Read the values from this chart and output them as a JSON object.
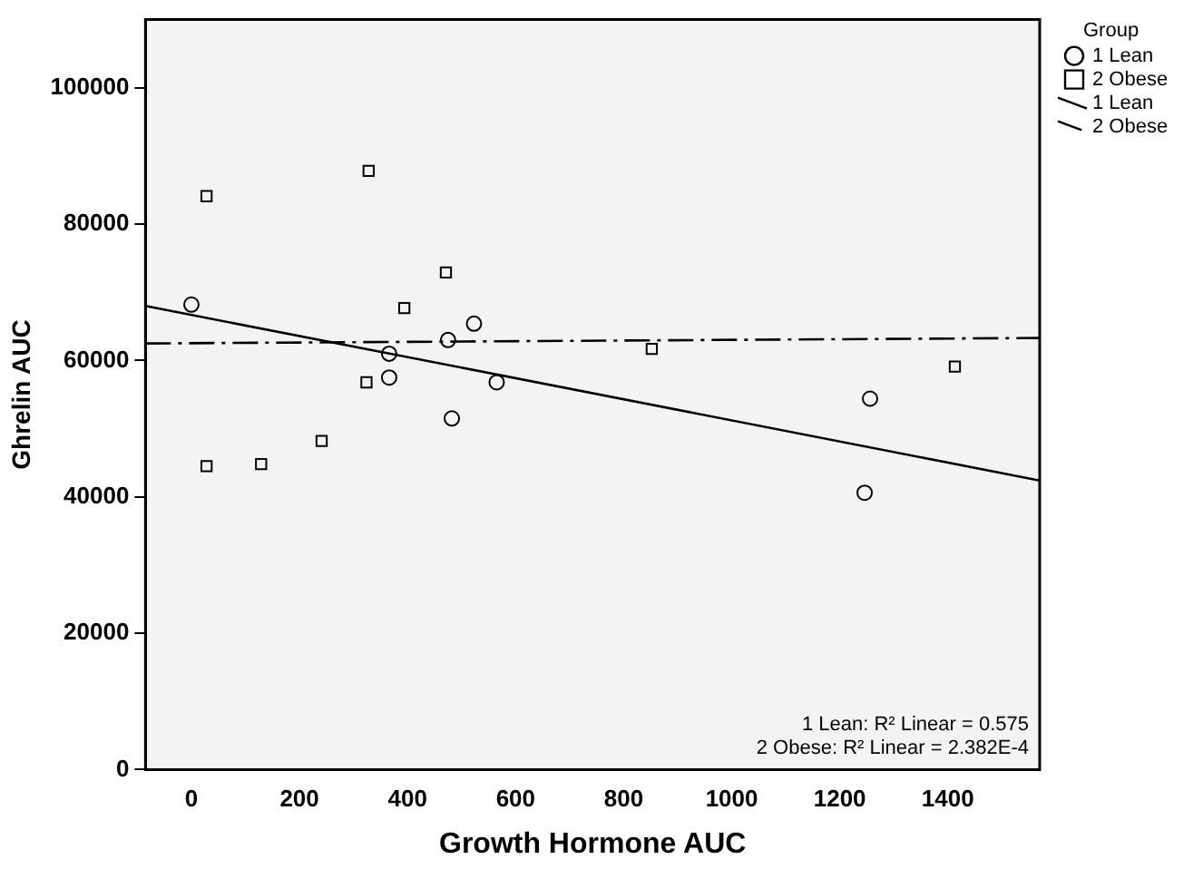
{
  "chart_data": {
    "type": "scatter",
    "xlabel": "Growth Hormone AUC",
    "ylabel": "Ghrelin AUC",
    "legend_title": "Group",
    "legend": "top right",
    "grid": false,
    "xlim": [
      -85,
      1570
    ],
    "xticks": [
      0,
      200,
      400,
      600,
      800,
      1000,
      1200,
      1400
    ],
    "ylim": [
      0,
      110000
    ],
    "yticks": [
      0,
      20000,
      40000,
      60000,
      80000,
      100000
    ],
    "series": [
      {
        "name": "1 Lean",
        "type": "scatter",
        "marker": "circle",
        "color": "#000000",
        "x": [
          0,
          366,
          366,
          482,
          475,
          523,
          565,
          1256,
          1246
        ],
        "values": [
          68200,
          61000,
          57500,
          51500,
          63000,
          65400,
          56800,
          54400,
          40600
        ]
      },
      {
        "name": "2 Obese",
        "type": "scatter",
        "marker": "square",
        "color": "#000000",
        "x": [
          28,
          328,
          471,
          394,
          324,
          852,
          1413,
          28,
          129,
          241
        ],
        "values": [
          84100,
          87800,
          72900,
          67700,
          56800,
          61700,
          59100,
          44500,
          44800,
          48200
        ]
      },
      {
        "name": "1 Lean",
        "type": "line",
        "line_style": "solid",
        "marker": "none",
        "color": "#000000",
        "x": [
          -85,
          1570
        ],
        "values": [
          68000,
          42400
        ]
      },
      {
        "name": "2 Obese",
        "type": "line",
        "line_style": "dashed",
        "marker": "none",
        "color": "#000000",
        "x": [
          -85,
          1570
        ],
        "values": [
          62500,
          63300
        ]
      }
    ],
    "annotations": [
      "1 Lean: R² Linear = 0.575",
      "2 Obese: R² Linear = 2.382E-4"
    ]
  }
}
